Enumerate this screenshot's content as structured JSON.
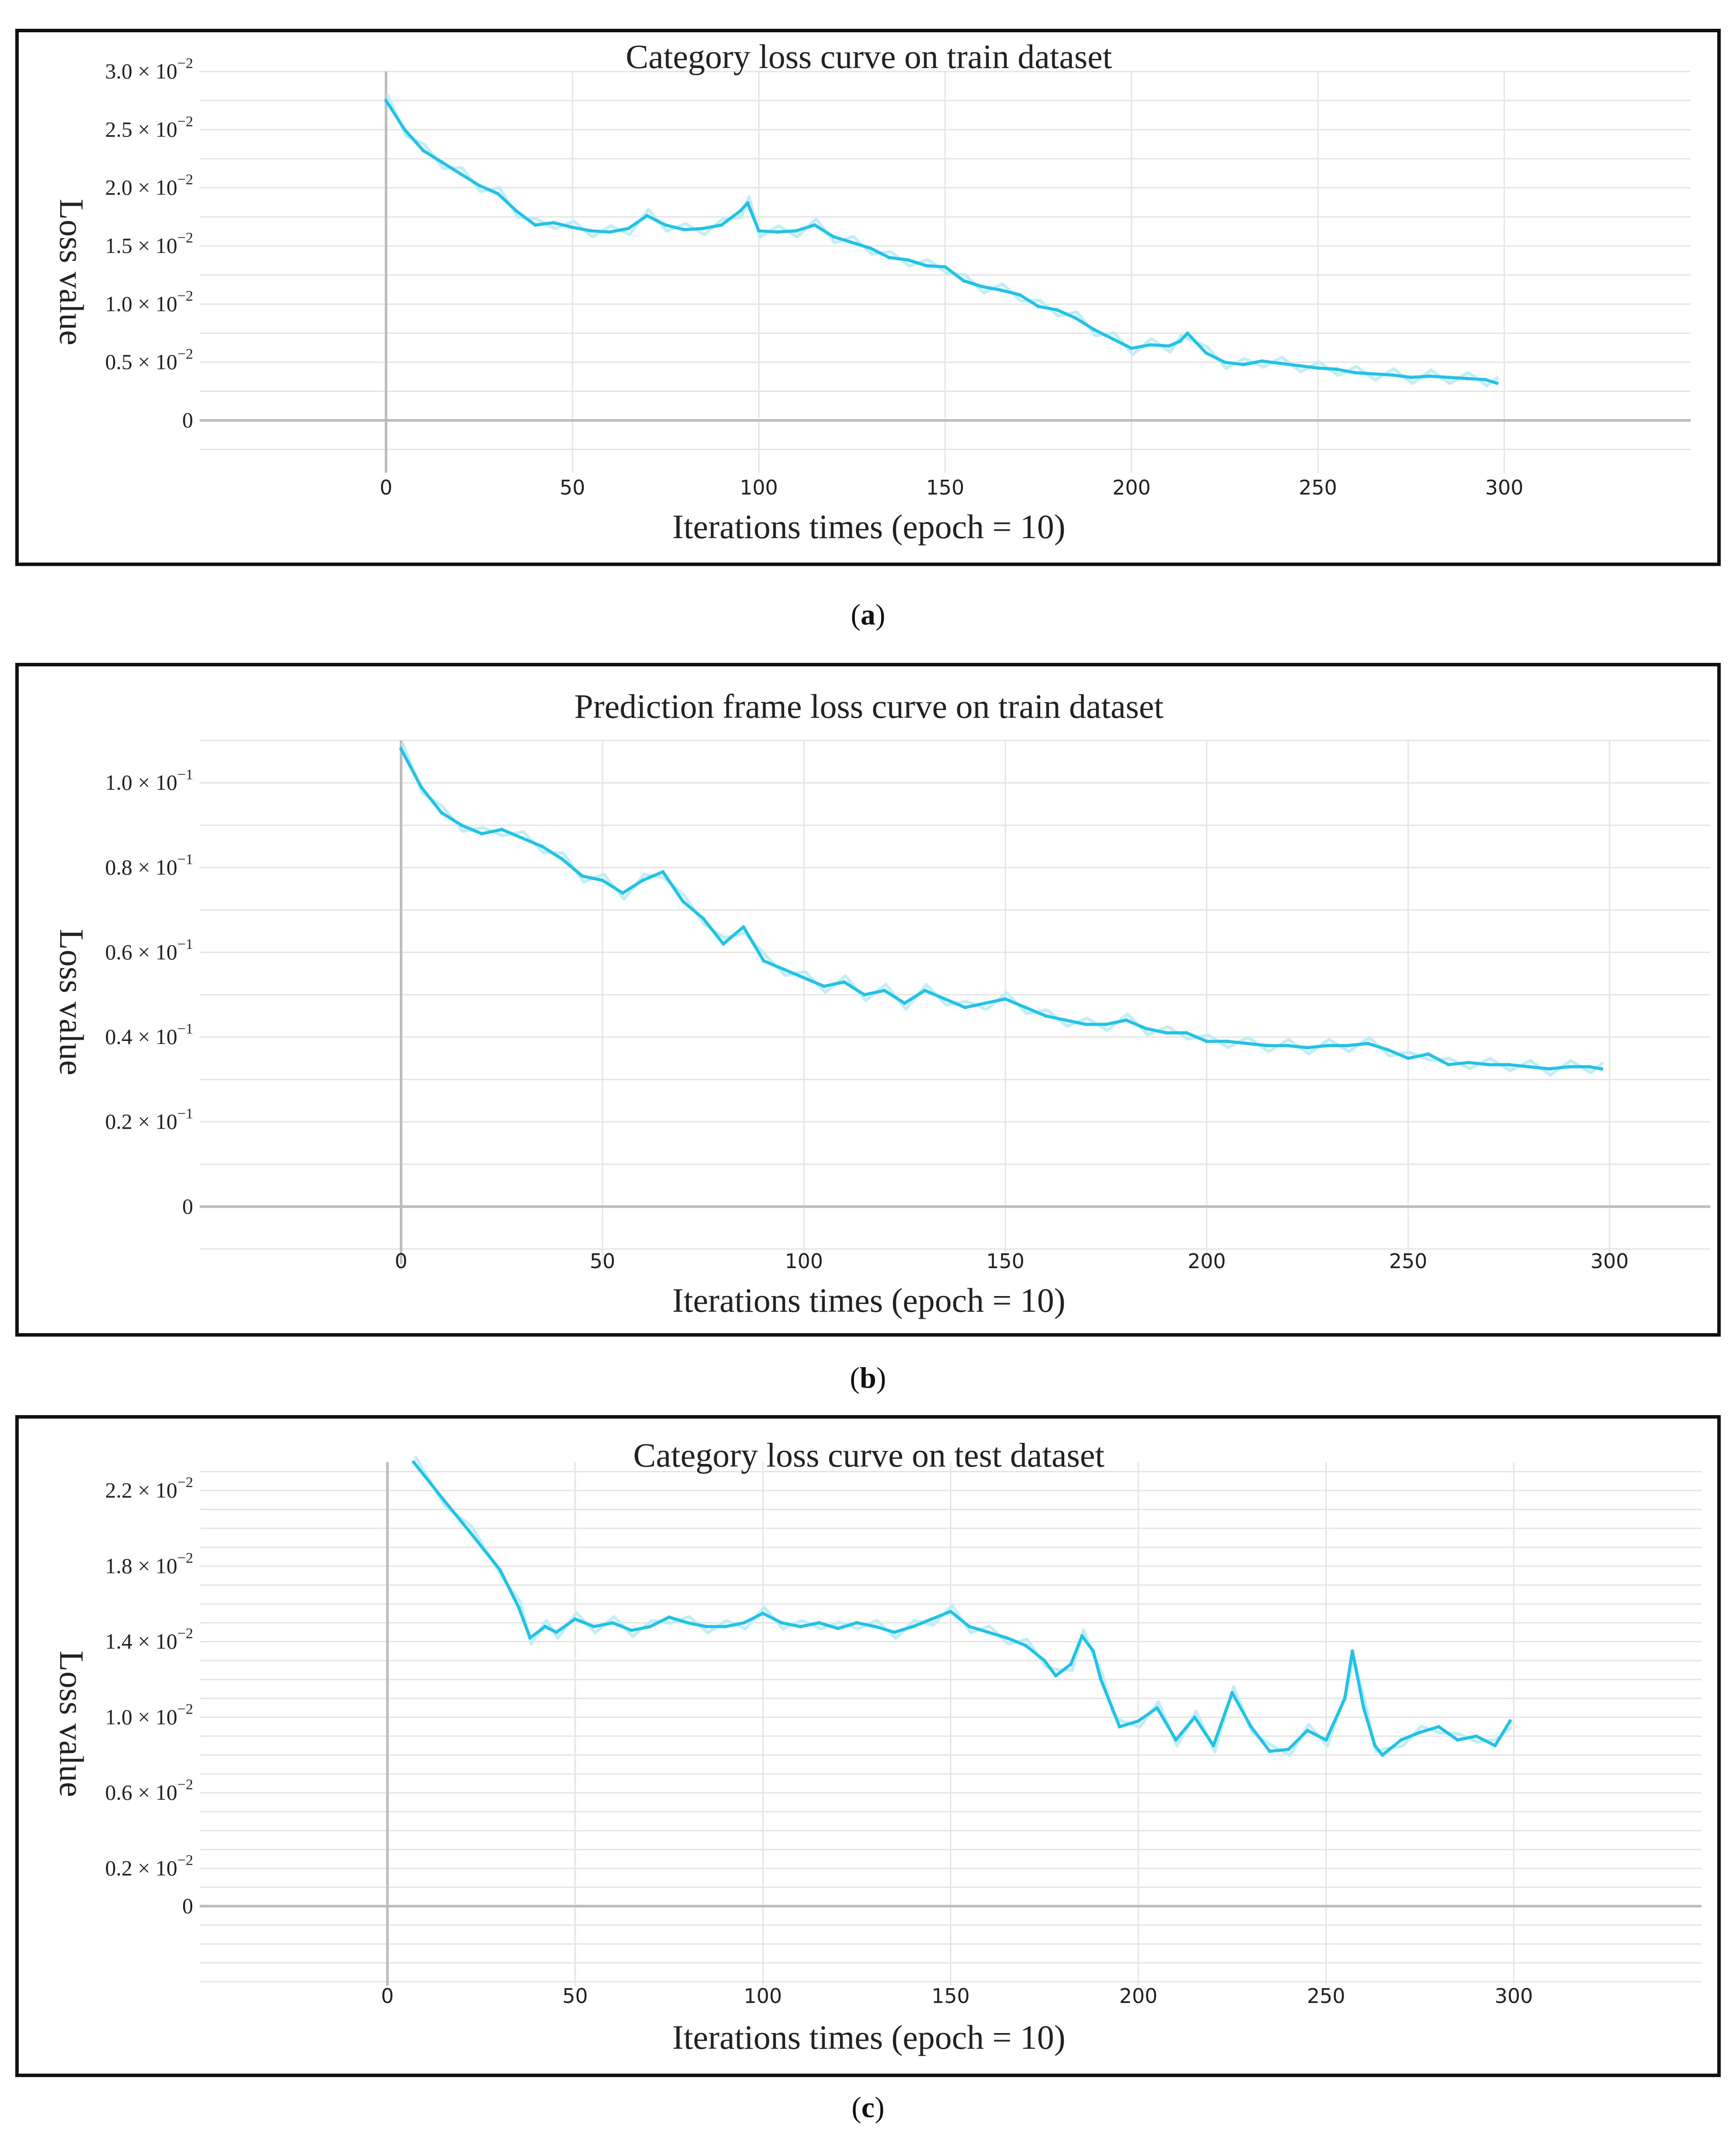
{
  "figure": {
    "captions": [
      "a",
      "b",
      "c"
    ]
  },
  "colors": {
    "line": "#1ec3ea",
    "line_light": "#bfeef9",
    "grid": "#e4e4e4",
    "axis": "#bdbdbd",
    "text": "#222222"
  },
  "chart_data": [
    {
      "type": "line",
      "title": "Category loss curve on train dataset",
      "xlabel": "Iterations times (epoch = 10)",
      "ylabel": "Loss value",
      "xlim": [
        -50,
        350
      ],
      "ylim": [
        -0.0045,
        0.03
      ],
      "x_ticks": [
        0,
        50,
        100,
        150,
        200,
        250,
        300
      ],
      "x_tick_labels": [
        "0",
        "50",
        "100",
        "150",
        "200",
        "250",
        "300"
      ],
      "y_ticks": [
        {
          "value": 0.03,
          "mant": "3.0",
          "exp": "−2"
        },
        {
          "value": 0.025,
          "mant": "2.5",
          "exp": "−2"
        },
        {
          "value": 0.02,
          "mant": "2.0",
          "exp": "−2"
        },
        {
          "value": 0.015,
          "mant": "1.5",
          "exp": "−2"
        },
        {
          "value": 0.01,
          "mant": "1.0",
          "exp": "−2"
        },
        {
          "value": 0.005,
          "mant": "0.5",
          "exp": "−2"
        },
        {
          "value": 0,
          "mant": "0",
          "exp": ""
        }
      ],
      "series": [
        {
          "name": "loss",
          "x": [
            0,
            5,
            10,
            15,
            20,
            25,
            30,
            35,
            40,
            45,
            50,
            55,
            60,
            65,
            70,
            75,
            80,
            85,
            90,
            95,
            97,
            100,
            105,
            110,
            115,
            120,
            125,
            130,
            135,
            140,
            145,
            150,
            155,
            160,
            165,
            170,
            175,
            180,
            185,
            190,
            195,
            200,
            205,
            210,
            213,
            215,
            220,
            225,
            230,
            235,
            240,
            245,
            250,
            255,
            260,
            265,
            270,
            275,
            280,
            285,
            290,
            295,
            298
          ],
          "y": [
            0.0275,
            0.025,
            0.0232,
            0.0222,
            0.0212,
            0.0202,
            0.0195,
            0.018,
            0.0168,
            0.017,
            0.0166,
            0.0163,
            0.0162,
            0.0165,
            0.0176,
            0.0168,
            0.0164,
            0.0165,
            0.0168,
            0.018,
            0.0187,
            0.0163,
            0.0162,
            0.0163,
            0.0168,
            0.0158,
            0.0153,
            0.0148,
            0.014,
            0.0138,
            0.0133,
            0.0132,
            0.012,
            0.0115,
            0.0112,
            0.0108,
            0.0098,
            0.0095,
            0.0088,
            0.0078,
            0.007,
            0.0062,
            0.0065,
            0.0064,
            0.0068,
            0.0075,
            0.0058,
            0.005,
            0.0048,
            0.0051,
            0.0049,
            0.0047,
            0.0045,
            0.0044,
            0.0041,
            0.004,
            0.0039,
            0.0037,
            0.0038,
            0.0037,
            0.0036,
            0.0035,
            0.0032
          ]
        }
      ]
    },
    {
      "type": "line",
      "title": "Prediction frame loss curve on train dataset",
      "xlabel": "Iterations times (epoch = 10)",
      "ylabel": "Loss value",
      "xlim": [
        -50,
        325
      ],
      "ylim": [
        -0.0135,
        0.11
      ],
      "x_ticks": [
        0,
        50,
        100,
        150,
        200,
        250,
        300
      ],
      "x_tick_labels": [
        "0",
        "50",
        "100",
        "150",
        "200",
        "250",
        "300"
      ],
      "y_ticks": [
        {
          "value": 0.1,
          "mant": "1.0",
          "exp": "−1"
        },
        {
          "value": 0.08,
          "mant": "0.8",
          "exp": "−1"
        },
        {
          "value": 0.06,
          "mant": "0.6",
          "exp": "−1"
        },
        {
          "value": 0.04,
          "mant": "0.4",
          "exp": "−1"
        },
        {
          "value": 0.02,
          "mant": "0.2",
          "exp": "−1"
        },
        {
          "value": 0,
          "mant": "0",
          "exp": ""
        }
      ],
      "series": [
        {
          "name": "loss",
          "x": [
            0,
            5,
            10,
            15,
            20,
            25,
            30,
            35,
            40,
            45,
            50,
            55,
            60,
            65,
            70,
            75,
            80,
            85,
            90,
            95,
            100,
            105,
            110,
            115,
            120,
            125,
            130,
            135,
            140,
            145,
            150,
            155,
            160,
            165,
            170,
            175,
            180,
            185,
            190,
            195,
            200,
            205,
            210,
            215,
            220,
            225,
            230,
            235,
            240,
            245,
            250,
            255,
            260,
            265,
            270,
            275,
            280,
            285,
            290,
            295,
            298
          ],
          "y": [
            0.108,
            0.099,
            0.093,
            0.09,
            0.088,
            0.089,
            0.087,
            0.085,
            0.082,
            0.078,
            0.077,
            0.074,
            0.077,
            0.079,
            0.072,
            0.068,
            0.062,
            0.066,
            0.058,
            0.056,
            0.054,
            0.052,
            0.053,
            0.05,
            0.051,
            0.048,
            0.051,
            0.049,
            0.047,
            0.048,
            0.049,
            0.047,
            0.045,
            0.044,
            0.043,
            0.043,
            0.044,
            0.042,
            0.041,
            0.041,
            0.039,
            0.039,
            0.0385,
            0.038,
            0.038,
            0.0375,
            0.038,
            0.038,
            0.0385,
            0.037,
            0.035,
            0.036,
            0.0335,
            0.034,
            0.0335,
            0.0335,
            0.033,
            0.0325,
            0.033,
            0.033,
            0.0325
          ]
        }
      ]
    },
    {
      "type": "line",
      "title": "Category loss curve on test dataset",
      "xlabel": "Iterations times (epoch = 10)",
      "ylabel": "Loss value",
      "xlim": [
        -50,
        350
      ],
      "ylim": [
        -0.0042,
        0.0235
      ],
      "x_ticks": [
        0,
        50,
        100,
        150,
        200,
        250,
        300
      ],
      "x_tick_labels": [
        "0",
        "50",
        "100",
        "150",
        "200",
        "250",
        "300"
      ],
      "y_ticks": [
        {
          "value": 0.022,
          "mant": "2.2",
          "exp": "−2"
        },
        {
          "value": 0.018,
          "mant": "1.8",
          "exp": "−2"
        },
        {
          "value": 0.014,
          "mant": "1.4",
          "exp": "−2"
        },
        {
          "value": 0.01,
          "mant": "1.0",
          "exp": "−2"
        },
        {
          "value": 0.006,
          "mant": "0.6",
          "exp": "−2"
        },
        {
          "value": 0.002,
          "mant": "0.2",
          "exp": "−2"
        },
        {
          "value": 0,
          "mant": "0",
          "exp": ""
        }
      ],
      "series": [
        {
          "name": "loss",
          "x": [
            7,
            15,
            22,
            30,
            35,
            38,
            42,
            45,
            50,
            55,
            60,
            65,
            70,
            75,
            80,
            85,
            90,
            95,
            100,
            105,
            110,
            115,
            120,
            125,
            130,
            135,
            140,
            145,
            150,
            155,
            160,
            165,
            170,
            175,
            178,
            182,
            185,
            188,
            190,
            193,
            195,
            200,
            205,
            210,
            215,
            220,
            225,
            230,
            235,
            240,
            245,
            250,
            255,
            257,
            260,
            263,
            265,
            270,
            275,
            280,
            285,
            290,
            295,
            299
          ],
          "y": [
            0.0235,
            0.0215,
            0.0198,
            0.0178,
            0.0158,
            0.0142,
            0.0148,
            0.0145,
            0.0152,
            0.0148,
            0.015,
            0.0146,
            0.0148,
            0.0153,
            0.015,
            0.0148,
            0.0148,
            0.015,
            0.0155,
            0.015,
            0.0148,
            0.015,
            0.0147,
            0.015,
            0.0148,
            0.0145,
            0.0148,
            0.0152,
            0.0156,
            0.0148,
            0.0145,
            0.0142,
            0.0138,
            0.013,
            0.0122,
            0.0128,
            0.0143,
            0.0135,
            0.012,
            0.0105,
            0.0095,
            0.0098,
            0.0105,
            0.0088,
            0.01,
            0.0085,
            0.0113,
            0.0095,
            0.0082,
            0.0083,
            0.0093,
            0.0088,
            0.011,
            0.0135,
            0.0105,
            0.0085,
            0.008,
            0.0088,
            0.0092,
            0.0095,
            0.0088,
            0.009,
            0.0085,
            0.0098
          ]
        }
      ]
    }
  ]
}
